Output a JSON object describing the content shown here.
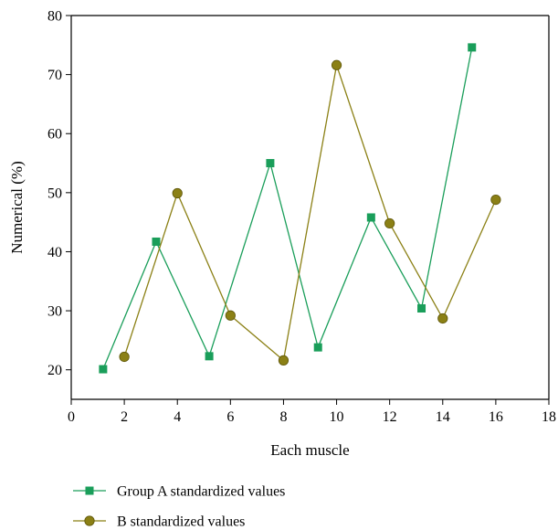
{
  "chart_data": {
    "type": "line",
    "title": "",
    "xlabel": "Each muscle",
    "ylabel": "Numerical (%)",
    "xlim": [
      0,
      18
    ],
    "ylim": [
      15,
      80
    ],
    "xticks": [
      0,
      2,
      4,
      6,
      8,
      10,
      12,
      14,
      16,
      18
    ],
    "yticks": [
      20,
      30,
      40,
      50,
      60,
      70,
      80
    ],
    "grid": false,
    "legend_position": "bottom",
    "series": [
      {
        "name": "Group A standardized values",
        "color": "#1a9e5a",
        "marker": "square",
        "x": [
          1.2,
          3.2,
          5.2,
          7.5,
          9.3,
          11.3,
          13.2,
          15.1
        ],
        "y": [
          20.1,
          41.7,
          22.3,
          55.0,
          23.8,
          45.8,
          30.4,
          74.6
        ]
      },
      {
        "name": "B standardized values",
        "color": "#8b8015",
        "marker": "circle",
        "x": [
          2.0,
          4.0,
          6.0,
          8.0,
          10.0,
          12.0,
          14.0,
          16.0
        ],
        "y": [
          22.2,
          49.9,
          29.2,
          21.6,
          71.6,
          44.8,
          28.7,
          48.8
        ]
      }
    ]
  }
}
